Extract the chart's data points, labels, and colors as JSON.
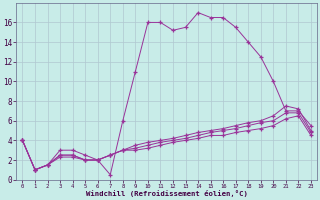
{
  "xlabel": "Windchill (Refroidissement éolien,°C)",
  "background_color": "#c8ece8",
  "fig_bg": "#c8ece8",
  "line_color": "#993399",
  "xlim": [
    -0.5,
    23.5
  ],
  "ylim": [
    0,
    18
  ],
  "xticks": [
    0,
    1,
    2,
    3,
    4,
    5,
    6,
    7,
    8,
    9,
    10,
    11,
    12,
    13,
    14,
    15,
    16,
    17,
    18,
    19,
    20,
    21,
    22,
    23
  ],
  "yticks": [
    0,
    2,
    4,
    6,
    8,
    10,
    12,
    14,
    16
  ],
  "series": [
    [
      4.0,
      1.0,
      1.5,
      3.0,
      3.0,
      2.5,
      2.0,
      0.5,
      6.0,
      11.0,
      16.0,
      16.0,
      15.2,
      15.5,
      17.0,
      16.5,
      16.5,
      15.5,
      14.0,
      12.5,
      10.0,
      7.0,
      7.0,
      5.5
    ],
    [
      4.0,
      1.0,
      1.5,
      2.5,
      2.5,
      2.0,
      2.0,
      2.5,
      3.0,
      3.5,
      3.8,
      4.0,
      4.2,
      4.5,
      4.8,
      5.0,
      5.2,
      5.5,
      5.8,
      6.0,
      6.5,
      7.5,
      7.2,
      5.0
    ],
    [
      4.0,
      1.0,
      1.5,
      2.5,
      2.5,
      2.0,
      2.0,
      2.5,
      3.0,
      3.2,
      3.5,
      3.8,
      4.0,
      4.2,
      4.5,
      4.8,
      5.0,
      5.2,
      5.5,
      5.8,
      6.0,
      6.8,
      6.8,
      4.8
    ],
    [
      4.0,
      1.0,
      1.5,
      2.3,
      2.3,
      2.0,
      2.0,
      2.5,
      3.0,
      3.0,
      3.2,
      3.5,
      3.8,
      4.0,
      4.2,
      4.5,
      4.5,
      4.8,
      5.0,
      5.2,
      5.5,
      6.2,
      6.5,
      4.5
    ]
  ]
}
